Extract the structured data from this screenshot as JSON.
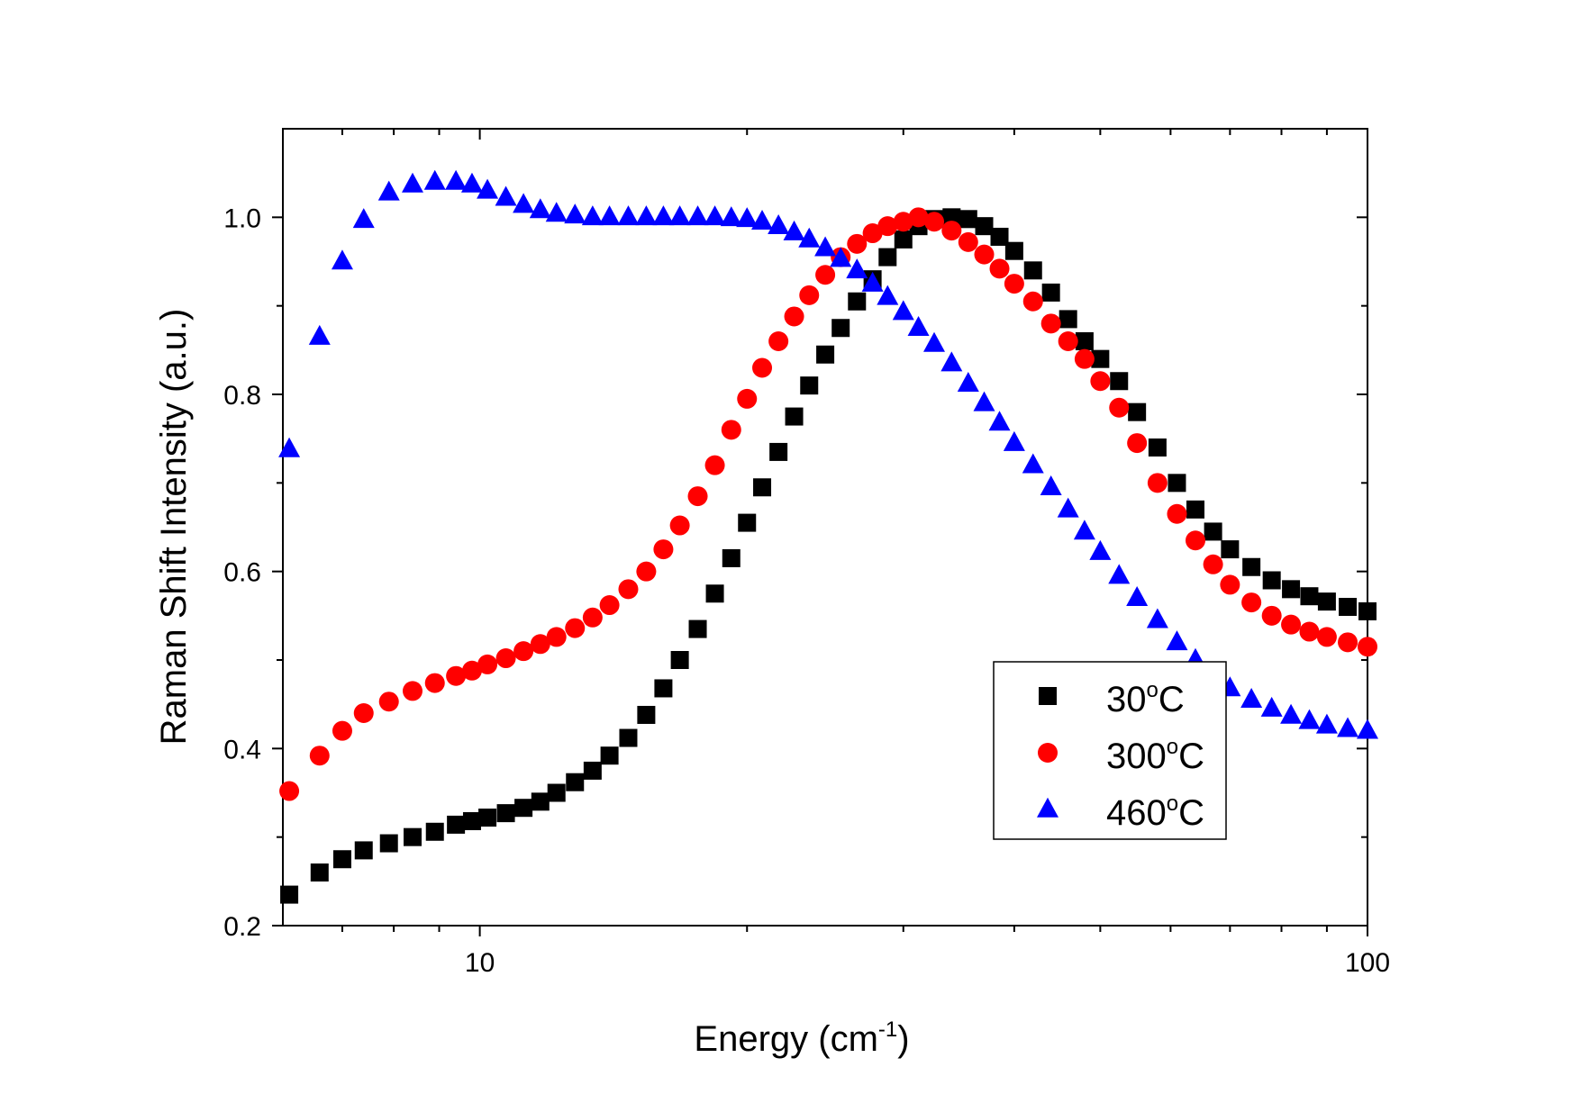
{
  "chart_data": {
    "type": "scatter",
    "title": "",
    "xlabel": {
      "base": "Energy (cm",
      "sup": "-1",
      "tail": ")"
    },
    "ylabel": "Raman Shift Intensity (a.u.)",
    "xscale": "log",
    "xlim": [
      6,
      100
    ],
    "ylim": [
      0.2,
      1.1
    ],
    "x_ticks": [
      10,
      100
    ],
    "x_tick_labels": [
      "10",
      "100"
    ],
    "y_ticks": [
      0.2,
      0.4,
      0.6,
      0.8,
      1.0
    ],
    "y_tick_labels": [
      "0.2",
      "0.4",
      "0.6",
      "0.8",
      "1.0"
    ],
    "legend_position": "center-right-bottom",
    "series": [
      {
        "name": "30°C",
        "label": {
          "num": "30",
          "deg": "o",
          "unit": "C"
        },
        "marker": "square",
        "color": "#000000",
        "points": [
          [
            6.1,
            0.235
          ],
          [
            6.6,
            0.26
          ],
          [
            7.0,
            0.275
          ],
          [
            7.4,
            0.285
          ],
          [
            7.9,
            0.293
          ],
          [
            8.4,
            0.3
          ],
          [
            8.9,
            0.306
          ],
          [
            9.4,
            0.314
          ],
          [
            9.8,
            0.318
          ],
          [
            10.2,
            0.322
          ],
          [
            10.7,
            0.327
          ],
          [
            11.2,
            0.333
          ],
          [
            11.7,
            0.34
          ],
          [
            12.2,
            0.35
          ],
          [
            12.8,
            0.362
          ],
          [
            13.4,
            0.375
          ],
          [
            14.0,
            0.392
          ],
          [
            14.7,
            0.412
          ],
          [
            15.4,
            0.438
          ],
          [
            16.1,
            0.468
          ],
          [
            16.8,
            0.5
          ],
          [
            17.6,
            0.535
          ],
          [
            18.4,
            0.575
          ],
          [
            19.2,
            0.615
          ],
          [
            20.0,
            0.655
          ],
          [
            20.8,
            0.695
          ],
          [
            21.7,
            0.735
          ],
          [
            22.6,
            0.775
          ],
          [
            23.5,
            0.81
          ],
          [
            24.5,
            0.845
          ],
          [
            25.5,
            0.875
          ],
          [
            26.6,
            0.905
          ],
          [
            27.7,
            0.93
          ],
          [
            28.8,
            0.955
          ],
          [
            30.0,
            0.975
          ],
          [
            31.2,
            0.99
          ],
          [
            32.5,
            0.998
          ],
          [
            34.0,
            1.0
          ],
          [
            35.5,
            0.998
          ],
          [
            37.0,
            0.99
          ],
          [
            38.5,
            0.978
          ],
          [
            40.0,
            0.962
          ],
          [
            42.0,
            0.94
          ],
          [
            44.0,
            0.915
          ],
          [
            46.0,
            0.885
          ],
          [
            48.0,
            0.86
          ],
          [
            50.0,
            0.84
          ],
          [
            52.5,
            0.815
          ],
          [
            55.0,
            0.78
          ],
          [
            58.0,
            0.74
          ],
          [
            61.0,
            0.7
          ],
          [
            64.0,
            0.67
          ],
          [
            67.0,
            0.645
          ],
          [
            70.0,
            0.625
          ],
          [
            74.0,
            0.605
          ],
          [
            78.0,
            0.59
          ],
          [
            82.0,
            0.58
          ],
          [
            86.0,
            0.572
          ],
          [
            90.0,
            0.566
          ],
          [
            95.0,
            0.56
          ],
          [
            100.0,
            0.555
          ]
        ]
      },
      {
        "name": "300°C",
        "label": {
          "num": "300",
          "deg": "o",
          "unit": "C"
        },
        "marker": "circle",
        "color": "#ff0000",
        "points": [
          [
            6.1,
            0.352
          ],
          [
            6.6,
            0.392
          ],
          [
            7.0,
            0.42
          ],
          [
            7.4,
            0.44
          ],
          [
            7.9,
            0.453
          ],
          [
            8.4,
            0.465
          ],
          [
            8.9,
            0.474
          ],
          [
            9.4,
            0.482
          ],
          [
            9.8,
            0.488
          ],
          [
            10.2,
            0.495
          ],
          [
            10.7,
            0.502
          ],
          [
            11.2,
            0.51
          ],
          [
            11.7,
            0.518
          ],
          [
            12.2,
            0.526
          ],
          [
            12.8,
            0.536
          ],
          [
            13.4,
            0.548
          ],
          [
            14.0,
            0.562
          ],
          [
            14.7,
            0.58
          ],
          [
            15.4,
            0.6
          ],
          [
            16.1,
            0.625
          ],
          [
            16.8,
            0.652
          ],
          [
            17.6,
            0.685
          ],
          [
            18.4,
            0.72
          ],
          [
            19.2,
            0.76
          ],
          [
            20.0,
            0.795
          ],
          [
            20.8,
            0.83
          ],
          [
            21.7,
            0.86
          ],
          [
            22.6,
            0.888
          ],
          [
            23.5,
            0.912
          ],
          [
            24.5,
            0.935
          ],
          [
            25.5,
            0.955
          ],
          [
            26.6,
            0.97
          ],
          [
            27.7,
            0.982
          ],
          [
            28.8,
            0.99
          ],
          [
            30.0,
            0.995
          ],
          [
            31.2,
            1.0
          ],
          [
            32.5,
            0.995
          ],
          [
            34.0,
            0.985
          ],
          [
            35.5,
            0.972
          ],
          [
            37.0,
            0.958
          ],
          [
            38.5,
            0.942
          ],
          [
            40.0,
            0.925
          ],
          [
            42.0,
            0.905
          ],
          [
            44.0,
            0.88
          ],
          [
            46.0,
            0.86
          ],
          [
            48.0,
            0.84
          ],
          [
            50.0,
            0.815
          ],
          [
            52.5,
            0.785
          ],
          [
            55.0,
            0.745
          ],
          [
            58.0,
            0.7
          ],
          [
            61.0,
            0.665
          ],
          [
            64.0,
            0.635
          ],
          [
            67.0,
            0.608
          ],
          [
            70.0,
            0.585
          ],
          [
            74.0,
            0.565
          ],
          [
            78.0,
            0.55
          ],
          [
            82.0,
            0.54
          ],
          [
            86.0,
            0.532
          ],
          [
            90.0,
            0.526
          ],
          [
            95.0,
            0.52
          ],
          [
            100.0,
            0.515
          ]
        ]
      },
      {
        "name": "460°C",
        "label": {
          "num": "460",
          "deg": "o",
          "unit": "C"
        },
        "marker": "triangle",
        "color": "#0000ff",
        "points": [
          [
            6.1,
            0.738
          ],
          [
            6.6,
            0.865
          ],
          [
            7.0,
            0.95
          ],
          [
            7.4,
            0.997
          ],
          [
            7.9,
            1.028
          ],
          [
            8.4,
            1.037
          ],
          [
            8.9,
            1.04
          ],
          [
            9.4,
            1.04
          ],
          [
            9.8,
            1.037
          ],
          [
            10.2,
            1.03
          ],
          [
            10.7,
            1.022
          ],
          [
            11.2,
            1.014
          ],
          [
            11.7,
            1.008
          ],
          [
            12.2,
            1.004
          ],
          [
            12.8,
            1.002
          ],
          [
            13.4,
            1.0
          ],
          [
            14.0,
            1.0
          ],
          [
            14.7,
            1.0
          ],
          [
            15.4,
            1.0
          ],
          [
            16.1,
            1.0
          ],
          [
            16.8,
            1.0
          ],
          [
            17.6,
            1.0
          ],
          [
            18.4,
            1.0
          ],
          [
            19.2,
            0.999
          ],
          [
            20.0,
            0.998
          ],
          [
            20.8,
            0.995
          ],
          [
            21.7,
            0.99
          ],
          [
            22.6,
            0.983
          ],
          [
            23.5,
            0.975
          ],
          [
            24.5,
            0.965
          ],
          [
            25.5,
            0.953
          ],
          [
            26.6,
            0.94
          ],
          [
            27.7,
            0.925
          ],
          [
            28.8,
            0.91
          ],
          [
            30.0,
            0.893
          ],
          [
            31.2,
            0.875
          ],
          [
            32.5,
            0.857
          ],
          [
            34.0,
            0.835
          ],
          [
            35.5,
            0.812
          ],
          [
            37.0,
            0.79
          ],
          [
            38.5,
            0.768
          ],
          [
            40.0,
            0.745
          ],
          [
            42.0,
            0.72
          ],
          [
            44.0,
            0.695
          ],
          [
            46.0,
            0.67
          ],
          [
            48.0,
            0.645
          ],
          [
            50.0,
            0.622
          ],
          [
            52.5,
            0.595
          ],
          [
            55.0,
            0.57
          ],
          [
            58.0,
            0.545
          ],
          [
            61.0,
            0.52
          ],
          [
            64.0,
            0.5
          ],
          [
            67.0,
            0.482
          ],
          [
            70.0,
            0.468
          ],
          [
            74.0,
            0.455
          ],
          [
            78.0,
            0.445
          ],
          [
            82.0,
            0.437
          ],
          [
            86.0,
            0.431
          ],
          [
            90.0,
            0.426
          ],
          [
            95.0,
            0.422
          ],
          [
            100.0,
            0.42
          ]
        ]
      }
    ]
  }
}
